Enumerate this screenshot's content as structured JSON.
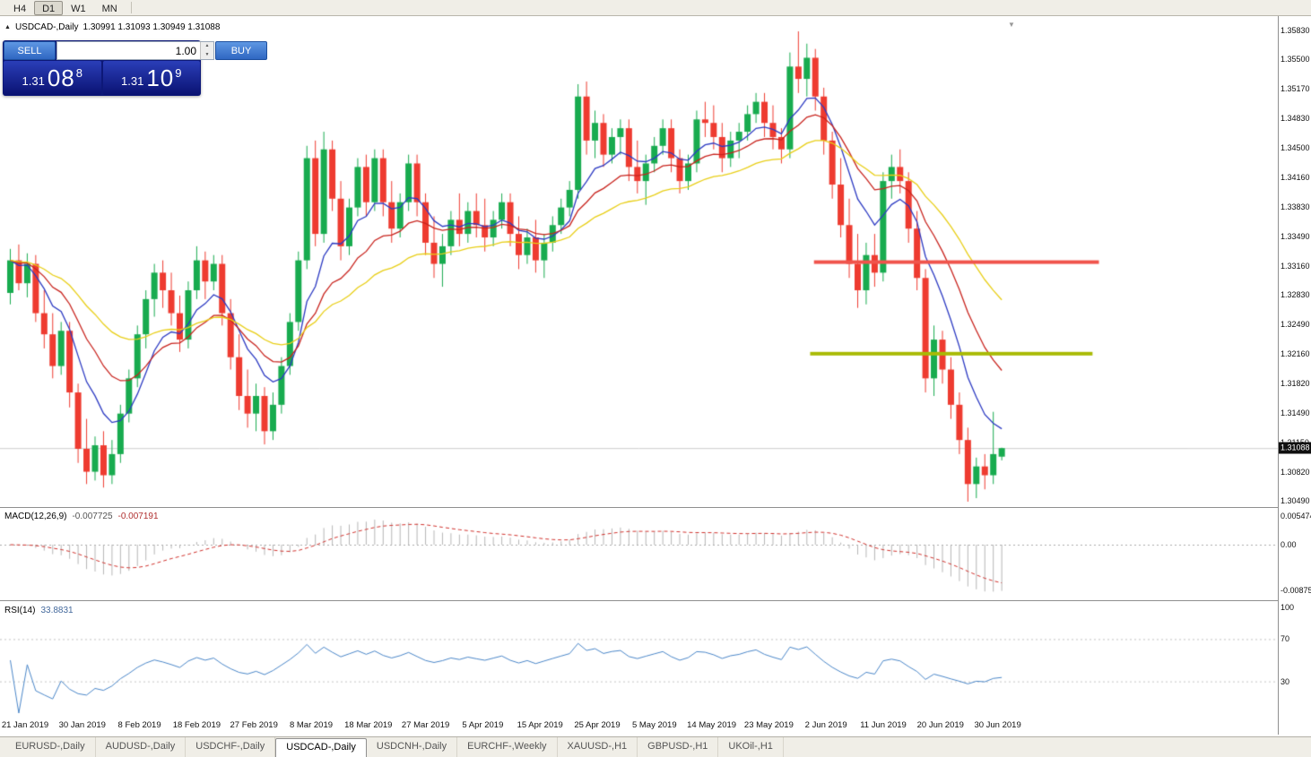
{
  "toolbar": {
    "timeframes": [
      "H4",
      "D1",
      "W1",
      "MN"
    ],
    "active": "D1"
  },
  "trade_panel": {
    "sell_label": "SELL",
    "buy_label": "BUY",
    "volume": "1.00",
    "sell_price": {
      "main": "1.31",
      "pips": "08",
      "pipette": "8"
    },
    "buy_price": {
      "main": "1.31",
      "pips": "10",
      "pipette": "9"
    }
  },
  "chart_data": {
    "type": "candlestick",
    "title": "USDCAD-,Daily",
    "ohlc_label": "1.30991 1.31093 1.30949 1.31088",
    "bid_price": 1.31088,
    "bid_price_label": "1.31088",
    "price_axis": [
      "1.35830",
      "1.35500",
      "1.35170",
      "1.34830",
      "1.34500",
      "1.34160",
      "1.33830",
      "1.33490",
      "1.33160",
      "1.32830",
      "1.32490",
      "1.32160",
      "1.31820",
      "1.31490",
      "1.31150",
      "1.30820",
      "1.30490"
    ],
    "price_range": {
      "top": 1.3583,
      "bottom": 1.3049
    },
    "time_labels": [
      "21 Jan 2019",
      "30 Jan 2019",
      "8 Feb 2019",
      "18 Feb 2019",
      "27 Feb 2019",
      "8 Mar 2019",
      "18 Mar 2019",
      "27 Mar 2019",
      "5 Apr 2019",
      "15 Apr 2019",
      "25 Apr 2019",
      "5 May 2019",
      "14 May 2019",
      "23 May 2019",
      "2 Jun 2019",
      "11 Jun 2019",
      "20 Jun 2019",
      "30 Jun 2019"
    ],
    "up_color": "#18ab4f",
    "down_color": "#ee3b30",
    "moving_averages": [
      {
        "name": "ma-fast",
        "method": "ema",
        "period": 8,
        "color": "#2c3ac2"
      },
      {
        "name": "ma-mid",
        "method": "ema",
        "period": 16,
        "color": "#c8231d"
      },
      {
        "name": "ma-slow",
        "method": "ema",
        "period": 32,
        "color": "#e8ce16"
      }
    ],
    "hlines": [
      {
        "price": 1.332,
        "color": "#f0544c",
        "width": 4,
        "x_from": 0.637,
        "x_to": 0.86
      },
      {
        "price": 1.3216,
        "color": "#a9ba05",
        "width": 4,
        "x_from": 0.634,
        "x_to": 0.855
      }
    ],
    "indicators": [
      {
        "name": "macd",
        "label": "MACD(12,26,9)",
        "value_main": "-0.007725",
        "value_signal": "-0.007191",
        "fast": 12,
        "slow": 26,
        "signal": 9,
        "axis": [
          "0.005474",
          "0.00",
          "-0.008752"
        ],
        "hist_color": "#b6b6b6",
        "signal_color": "#d0312c"
      },
      {
        "name": "rsi",
        "label": "RSI(14)",
        "value": "33.8831",
        "period": 14,
        "axis": [
          "100",
          "70",
          "30"
        ],
        "levels": [
          70,
          30
        ],
        "color": "#4a86c8"
      }
    ],
    "candles": [
      [
        1.3285,
        1.3335,
        1.3272,
        1.3322
      ],
      [
        1.3322,
        1.334,
        1.3288,
        1.3296
      ],
      [
        1.3296,
        1.333,
        1.328,
        1.3318
      ],
      [
        1.3318,
        1.3328,
        1.3252,
        1.3262
      ],
      [
        1.3262,
        1.3288,
        1.3222,
        1.3238
      ],
      [
        1.3238,
        1.3262,
        1.3188,
        1.3202
      ],
      [
        1.3202,
        1.3252,
        1.3192,
        1.3242
      ],
      [
        1.3242,
        1.3252,
        1.3155,
        1.3172
      ],
      [
        1.3172,
        1.3182,
        1.3092,
        1.3108
      ],
      [
        1.3108,
        1.3142,
        1.3068,
        1.3082
      ],
      [
        1.3082,
        1.3122,
        1.3072,
        1.3112
      ],
      [
        1.3112,
        1.3128,
        1.3064,
        1.3078
      ],
      [
        1.3078,
        1.3118,
        1.3068,
        1.3102
      ],
      [
        1.3102,
        1.3158,
        1.3092,
        1.3148
      ],
      [
        1.3148,
        1.3198,
        1.3138,
        1.3188
      ],
      [
        1.3188,
        1.3248,
        1.3178,
        1.3238
      ],
      [
        1.3238,
        1.3288,
        1.3222,
        1.3278
      ],
      [
        1.3278,
        1.3318,
        1.3258,
        1.3308
      ],
      [
        1.3308,
        1.3322,
        1.3268,
        1.3288
      ],
      [
        1.3288,
        1.3308,
        1.3248,
        1.3262
      ],
      [
        1.3262,
        1.3282,
        1.3218,
        1.3232
      ],
      [
        1.3232,
        1.3298,
        1.3222,
        1.3288
      ],
      [
        1.3288,
        1.3338,
        1.3278,
        1.3322
      ],
      [
        1.3322,
        1.3332,
        1.3278,
        1.3298
      ],
      [
        1.3298,
        1.3328,
        1.3288,
        1.3318
      ],
      [
        1.3318,
        1.3328,
        1.3248,
        1.3262
      ],
      [
        1.3262,
        1.3278,
        1.3198,
        1.3212
      ],
      [
        1.3212,
        1.3238,
        1.3152,
        1.3168
      ],
      [
        1.3168,
        1.3198,
        1.3132,
        1.3148
      ],
      [
        1.3148,
        1.3182,
        1.3128,
        1.3168
      ],
      [
        1.3168,
        1.3178,
        1.3113,
        1.3128
      ],
      [
        1.3128,
        1.3172,
        1.3118,
        1.3158
      ],
      [
        1.3158,
        1.3212,
        1.3148,
        1.3202
      ],
      [
        1.3202,
        1.3262,
        1.3192,
        1.3252
      ],
      [
        1.3252,
        1.3332,
        1.3242,
        1.3322
      ],
      [
        1.3322,
        1.3452,
        1.3312,
        1.3438
      ],
      [
        1.3438,
        1.3458,
        1.3338,
        1.3352
      ],
      [
        1.3352,
        1.3468,
        1.3342,
        1.3448
      ],
      [
        1.3448,
        1.3458,
        1.3378,
        1.3392
      ],
      [
        1.3392,
        1.3412,
        1.3322,
        1.3338
      ],
      [
        1.3338,
        1.3392,
        1.3328,
        1.3382
      ],
      [
        1.3382,
        1.3438,
        1.3372,
        1.3428
      ],
      [
        1.3428,
        1.3442,
        1.3372,
        1.3388
      ],
      [
        1.3388,
        1.3448,
        1.3378,
        1.3438
      ],
      [
        1.3438,
        1.3448,
        1.3372,
        1.3388
      ],
      [
        1.3388,
        1.3412,
        1.3342,
        1.3358
      ],
      [
        1.3358,
        1.3398,
        1.3348,
        1.3388
      ],
      [
        1.3388,
        1.3442,
        1.3378,
        1.3432
      ],
      [
        1.3432,
        1.3442,
        1.3372,
        1.3388
      ],
      [
        1.3388,
        1.3398,
        1.3328,
        1.3342
      ],
      [
        1.3342,
        1.3372,
        1.3302,
        1.3318
      ],
      [
        1.3318,
        1.3352,
        1.3292,
        1.3338
      ],
      [
        1.3338,
        1.3378,
        1.3328,
        1.3368
      ],
      [
        1.3368,
        1.3398,
        1.3338,
        1.3352
      ],
      [
        1.3352,
        1.3388,
        1.3342,
        1.3378
      ],
      [
        1.3378,
        1.3398,
        1.3348,
        1.3362
      ],
      [
        1.3362,
        1.3392,
        1.3332,
        1.3348
      ],
      [
        1.3348,
        1.3378,
        1.3338,
        1.3368
      ],
      [
        1.3368,
        1.3398,
        1.3358,
        1.3388
      ],
      [
        1.3388,
        1.3398,
        1.3338,
        1.3352
      ],
      [
        1.3352,
        1.3372,
        1.3312,
        1.3328
      ],
      [
        1.3328,
        1.3358,
        1.3318,
        1.3348
      ],
      [
        1.3348,
        1.3368,
        1.3308,
        1.3322
      ],
      [
        1.3322,
        1.3352,
        1.3302,
        1.3342
      ],
      [
        1.3342,
        1.3372,
        1.3332,
        1.3362
      ],
      [
        1.3362,
        1.3392,
        1.3352,
        1.3382
      ],
      [
        1.3382,
        1.3412,
        1.3372,
        1.3402
      ],
      [
        1.3402,
        1.3522,
        1.3392,
        1.3508
      ],
      [
        1.3508,
        1.3525,
        1.3442,
        1.3458
      ],
      [
        1.3458,
        1.3492,
        1.3438,
        1.3478
      ],
      [
        1.3478,
        1.3488,
        1.3428,
        1.3442
      ],
      [
        1.3442,
        1.3472,
        1.3432,
        1.3462
      ],
      [
        1.3462,
        1.3482,
        1.3442,
        1.3472
      ],
      [
        1.3472,
        1.3482,
        1.3412,
        1.3428
      ],
      [
        1.3428,
        1.3458,
        1.3398,
        1.3412
      ],
      [
        1.3412,
        1.3442,
        1.3385,
        1.3432
      ],
      [
        1.3432,
        1.3462,
        1.3422,
        1.3452
      ],
      [
        1.3452,
        1.3482,
        1.3442,
        1.3472
      ],
      [
        1.3472,
        1.3482,
        1.3422,
        1.3438
      ],
      [
        1.3438,
        1.3448,
        1.3398,
        1.3412
      ],
      [
        1.3412,
        1.3442,
        1.3402,
        1.3432
      ],
      [
        1.3432,
        1.3492,
        1.3422,
        1.3482
      ],
      [
        1.3482,
        1.3502,
        1.3462,
        1.3478
      ],
      [
        1.3478,
        1.3498,
        1.3448,
        1.3462
      ],
      [
        1.3462,
        1.3478,
        1.3422,
        1.3438
      ],
      [
        1.3438,
        1.3468,
        1.3428,
        1.3458
      ],
      [
        1.3458,
        1.3478,
        1.3438,
        1.3468
      ],
      [
        1.3468,
        1.3498,
        1.3458,
        1.3488
      ],
      [
        1.3488,
        1.3512,
        1.3478,
        1.3502
      ],
      [
        1.3502,
        1.3512,
        1.3462,
        1.3478
      ],
      [
        1.3478,
        1.3498,
        1.3448,
        1.3462
      ],
      [
        1.3462,
        1.3472,
        1.3432,
        1.3448
      ],
      [
        1.3448,
        1.3558,
        1.3438,
        1.3542
      ],
      [
        1.3542,
        1.3582,
        1.3512,
        1.3528
      ],
      [
        1.3528,
        1.3568,
        1.3508,
        1.3552
      ],
      [
        1.3552,
        1.3562,
        1.3492,
        1.3508
      ],
      [
        1.3508,
        1.3518,
        1.3442,
        1.3458
      ],
      [
        1.3458,
        1.3468,
        1.3392,
        1.3408
      ],
      [
        1.3408,
        1.3438,
        1.3348,
        1.3362
      ],
      [
        1.3362,
        1.3392,
        1.3302,
        1.3318
      ],
      [
        1.3318,
        1.3352,
        1.3268,
        1.3288
      ],
      [
        1.3288,
        1.3342,
        1.3272,
        1.3328
      ],
      [
        1.3328,
        1.3352,
        1.3292,
        1.3308
      ],
      [
        1.3308,
        1.3422,
        1.3298,
        1.3412
      ],
      [
        1.3412,
        1.3442,
        1.3392,
        1.3428
      ],
      [
        1.3428,
        1.3448,
        1.3398,
        1.3412
      ],
      [
        1.3412,
        1.3422,
        1.3342,
        1.3358
      ],
      [
        1.3358,
        1.3378,
        1.3288,
        1.3302
      ],
      [
        1.3302,
        1.3312,
        1.3172,
        1.3188
      ],
      [
        1.3188,
        1.3248,
        1.3168,
        1.3232
      ],
      [
        1.3232,
        1.3242,
        1.3182,
        1.3198
      ],
      [
        1.3198,
        1.3212,
        1.3142,
        1.3158
      ],
      [
        1.3158,
        1.3172,
        1.3102,
        1.3118
      ],
      [
        1.3118,
        1.3132,
        1.3048,
        1.3068
      ],
      [
        1.3068,
        1.3098,
        1.3052,
        1.3088
      ],
      [
        1.3088,
        1.3102,
        1.3062,
        1.3078
      ],
      [
        1.3078,
        1.315,
        1.3068,
        1.3102
      ],
      [
        1.30991,
        1.31093,
        1.30949,
        1.31088
      ]
    ]
  },
  "bottom_tabs": {
    "active": "USDCAD-,Daily",
    "items": [
      "EURUSD-,Daily",
      "AUDUSD-,Daily",
      "USDCHF-,Daily",
      "USDCAD-,Daily",
      "USDCNH-,Daily",
      "EURCHF-,Weekly",
      "XAUUSD-,H1",
      "GBPUSD-,H1",
      "UKOil-,H1"
    ]
  }
}
